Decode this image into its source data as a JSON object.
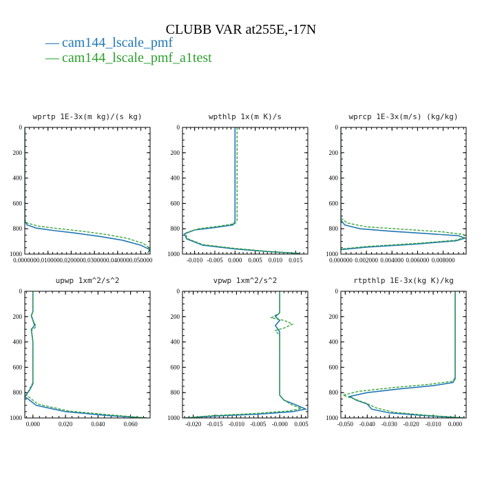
{
  "title": "CLUBB VAR at255E,-17N",
  "legend": [
    {
      "label": "cam144_lscale_pmf",
      "color": "#1f77b4",
      "dash": "none"
    },
    {
      "label": "cam144_lscale_pmf_a1test",
      "color": "#2ca02c",
      "dash": "4,2"
    }
  ],
  "legend_symbol": "—",
  "chart_data": [
    {
      "type": "line",
      "title": "wprtp  1E-3x(m kg)/(s kg)",
      "xlim": [
        0,
        0.054
      ],
      "ylim": [
        1000,
        0
      ],
      "x_ticks": [
        0,
        0.01,
        0.02,
        0.03,
        0.04,
        0.05
      ],
      "x_tick_labels": [
        "0.000000",
        "0.010000",
        "0.020000",
        "0.030000",
        "0.040000",
        "0.050000"
      ],
      "y_ticks": [
        0,
        200,
        400,
        600,
        800,
        1000
      ],
      "series": [
        {
          "name": "cam144_lscale_pmf",
          "x": [
            0,
            0,
            0,
            0.001,
            0.005,
            0.013,
            0.022,
            0.032,
            0.042,
            0.05,
            0.054,
            0.053
          ],
          "y": [
            0,
            500,
            740,
            770,
            795,
            815,
            835,
            860,
            890,
            930,
            965,
            990
          ]
        },
        {
          "name": "cam144_lscale_pmf_a1test",
          "x": [
            0,
            0,
            0,
            0.001,
            0.006,
            0.015,
            0.025,
            0.035,
            0.044,
            0.051,
            0.054,
            0.053
          ],
          "y": [
            0,
            500,
            725,
            755,
            780,
            800,
            820,
            845,
            875,
            915,
            955,
            990
          ]
        }
      ]
    },
    {
      "type": "line",
      "title": "wpthlp  1x(m K)/s",
      "xlim": [
        -0.013,
        0.018
      ],
      "ylim": [
        1000,
        0
      ],
      "x_ticks": [
        -0.01,
        -0.005,
        0,
        0.005,
        0.01,
        0.015
      ],
      "x_tick_labels": [
        "-0.010",
        "-0.005",
        "0.000",
        "0.005",
        "0.010",
        "0.015"
      ],
      "y_ticks": [
        0,
        200,
        400,
        600,
        800,
        1000
      ],
      "series": [
        {
          "name": "cam144_lscale_pmf",
          "x": [
            0,
            0,
            -0.0005,
            -0.005,
            -0.01,
            -0.0125,
            -0.012,
            -0.008,
            0,
            0.008,
            0.016
          ],
          "y": [
            0,
            740,
            770,
            790,
            810,
            840,
            880,
            930,
            960,
            980,
            995
          ]
        },
        {
          "name": "cam144_lscale_pmf_a1test",
          "x": [
            0.0005,
            0.0005,
            0,
            -0.004,
            -0.009,
            -0.012,
            -0.012,
            -0.008,
            0,
            0.008,
            0.016
          ],
          "y": [
            0,
            735,
            760,
            780,
            800,
            830,
            875,
            925,
            955,
            978,
            995
          ]
        }
      ]
    },
    {
      "type": "line",
      "title": "wprcp  1E-3x(m/s) (kg/kg)",
      "xlim": [
        0,
        0.0098
      ],
      "ylim": [
        1000,
        0
      ],
      "x_ticks": [
        0,
        0.002,
        0.004,
        0.006,
        0.008
      ],
      "x_tick_labels": [
        "0.000000",
        "0.002000",
        "0.004000",
        "0.006000",
        "0.008000"
      ],
      "y_ticks": [
        0,
        200,
        400,
        600,
        800,
        1000
      ],
      "series": [
        {
          "name": "cam144_lscale_pmf",
          "x": [
            0,
            0,
            0.0003,
            0.0015,
            0.004,
            0.007,
            0.0092,
            0.0097,
            0.009,
            0.006,
            0.002,
            0
          ],
          "y": [
            0,
            730,
            770,
            800,
            820,
            840,
            855,
            875,
            895,
            920,
            945,
            965
          ]
        },
        {
          "name": "cam144_lscale_pmf_a1test",
          "x": [
            0,
            0,
            0.0005,
            0.002,
            0.005,
            0.008,
            0.0096,
            0.0097,
            0.009,
            0.006,
            0.002,
            0
          ],
          "y": [
            0,
            715,
            755,
            785,
            805,
            825,
            845,
            868,
            890,
            915,
            940,
            960
          ]
        }
      ]
    },
    {
      "type": "line",
      "title": "upwp  1xm^2/s^2",
      "xlim": [
        -0.005,
        0.072
      ],
      "ylim": [
        1000,
        0
      ],
      "x_ticks": [
        0,
        0.02,
        0.04,
        0.06
      ],
      "x_tick_labels": [
        "0.000",
        "0.020",
        "0.040",
        "0.060"
      ],
      "y_ticks": [
        0,
        200,
        400,
        600,
        800,
        1000
      ],
      "series": [
        {
          "name": "cam144_lscale_pmf",
          "x": [
            0,
            0,
            -0.001,
            0.001,
            -0.001,
            0,
            0,
            -0.002,
            -0.005,
            0.002,
            0.02,
            0.045,
            0.07
          ],
          "y": [
            0,
            160,
            190,
            270,
            300,
            400,
            730,
            780,
            830,
            900,
            950,
            980,
            1000
          ]
        },
        {
          "name": "cam144_lscale_pmf_a1test",
          "x": [
            0,
            0,
            -0.001,
            0.002,
            -0.001,
            0,
            0,
            -0.002,
            -0.004,
            0.003,
            0.022,
            0.047,
            0.07
          ],
          "y": [
            0,
            160,
            200,
            280,
            310,
            400,
            720,
            770,
            820,
            890,
            945,
            975,
            1000
          ]
        }
      ]
    },
    {
      "type": "line",
      "title": "vpwp  1xm^2/s^2",
      "xlim": [
        -0.0225,
        0.0065
      ],
      "ylim": [
        1000,
        0
      ],
      "x_ticks": [
        -0.02,
        -0.015,
        -0.01,
        -0.005,
        0,
        0.005
      ],
      "x_tick_labels": [
        "-0.020",
        "-0.015",
        "-0.010",
        "-0.005",
        "-0.000",
        "0.005"
      ],
      "y_ticks": [
        0,
        200,
        400,
        600,
        800,
        1000
      ],
      "series": [
        {
          "name": "cam144_lscale_pmf",
          "x": [
            0,
            0,
            -0.001,
            0,
            -0.001,
            0,
            0,
            0.001,
            0.004,
            0.006,
            0.003,
            -0.005,
            -0.015,
            -0.022
          ],
          "y": [
            0,
            170,
            200,
            230,
            270,
            320,
            820,
            860,
            900,
            930,
            950,
            970,
            985,
            1000
          ]
        },
        {
          "name": "cam144_lscale_pmf_a1test",
          "x": [
            0,
            0,
            -0.002,
            0.001,
            0.003,
            0.001,
            -0.001,
            0,
            0,
            0.001,
            0.003,
            0.005,
            0.002,
            -0.006,
            -0.016,
            -0.022
          ],
          "y": [
            0,
            170,
            210,
            230,
            260,
            290,
            310,
            350,
            820,
            860,
            900,
            925,
            945,
            965,
            982,
            1000
          ]
        }
      ]
    },
    {
      "type": "line",
      "title": "rtpthlp  1E-3x(kg K)/kg",
      "xlim": [
        -0.052,
        0.005
      ],
      "ylim": [
        1000,
        0
      ],
      "x_ticks": [
        -0.05,
        -0.04,
        -0.03,
        -0.02,
        -0.01,
        0
      ],
      "x_tick_labels": [
        "-0.050",
        "-0.040",
        "-0.030",
        "-0.020",
        "-0.010",
        "0.000"
      ],
      "y_ticks": [
        0,
        200,
        400,
        600,
        800,
        1000
      ],
      "series": [
        {
          "name": "cam144_lscale_pmf",
          "x": [
            0,
            0,
            -0.001,
            -0.01,
            -0.025,
            -0.04,
            -0.048,
            -0.045,
            -0.04,
            -0.038,
            -0.03,
            -0.015,
            -0.003,
            0.004
          ],
          "y": [
            0,
            690,
            720,
            745,
            770,
            800,
            830,
            860,
            890,
            930,
            960,
            980,
            993,
            1000
          ]
        },
        {
          "name": "cam144_lscale_pmf_a1test",
          "x": [
            0,
            0,
            -0.001,
            -0.012,
            -0.028,
            -0.044,
            -0.051,
            -0.046,
            -0.041,
            -0.036,
            -0.028,
            -0.013,
            -0.002,
            0.004
          ],
          "y": [
            0,
            680,
            710,
            735,
            760,
            790,
            820,
            850,
            880,
            920,
            955,
            978,
            992,
            1000
          ]
        }
      ]
    }
  ]
}
